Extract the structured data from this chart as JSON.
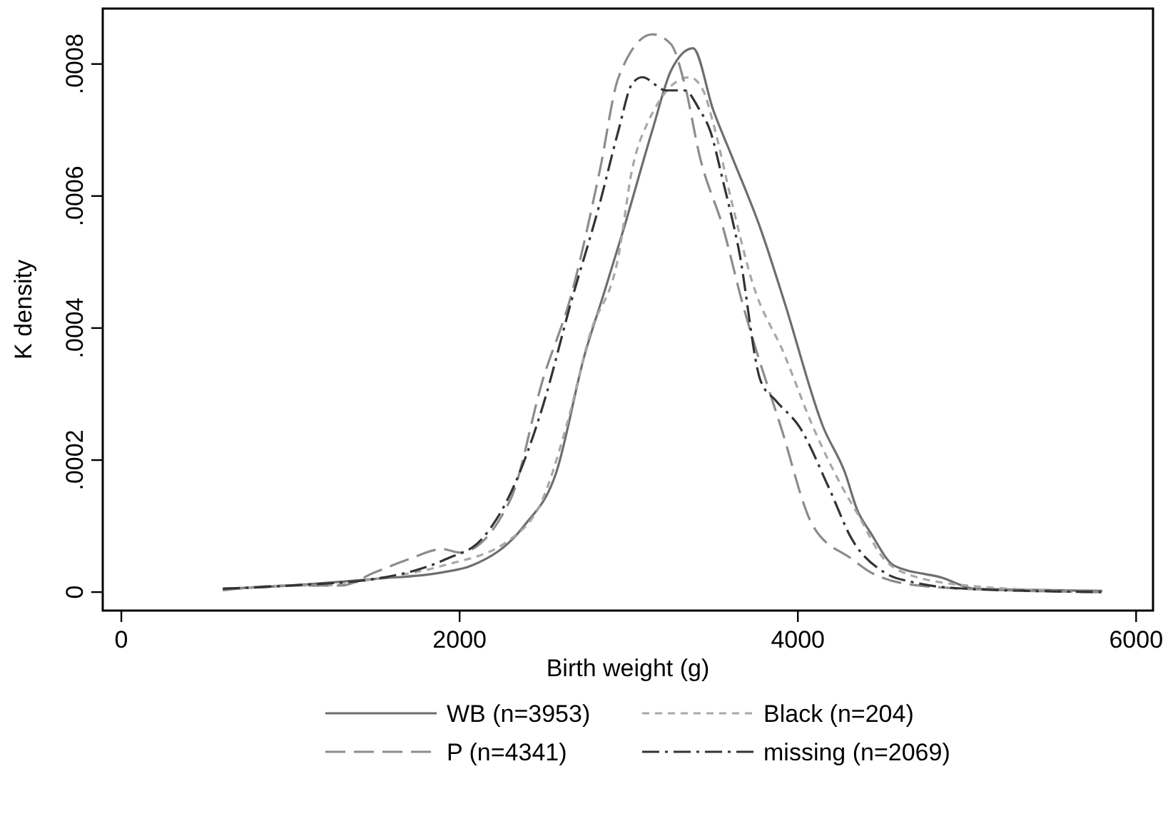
{
  "chart_data": {
    "type": "line",
    "xlabel": "Birth weight (g)",
    "ylabel": "K density",
    "xlim": [
      -110,
      6100
    ],
    "xticks": [
      0,
      2000,
      4000,
      6000
    ],
    "ylim": [
      -2.8e-05,
      0.000884
    ],
    "yticks": [
      {
        "value": 0,
        "label": "0"
      },
      {
        "value": 0.0002,
        "label": ".0002"
      },
      {
        "value": 0.0004,
        "label": ".0004"
      },
      {
        "value": 0.0006,
        "label": ".0006"
      },
      {
        "value": 0.0008,
        "label": ".0008"
      }
    ],
    "grid": false,
    "legend": "bottom",
    "marker": "none",
    "series": [
      {
        "name": "WB (n=3953)",
        "color": "#6e6e6e",
        "line_style": "solid",
        "x": [
          600,
          1000,
          1500,
          1900,
          2070,
          2380,
          2570,
          2740,
          2850,
          2970,
          3140,
          3250,
          3380,
          3500,
          3610,
          3780,
          3920,
          4150,
          4280,
          4350,
          4430,
          4570,
          4850,
          5050,
          5800
        ],
        "values": [
          5e-06,
          1e-05,
          2e-05,
          3e-05,
          4e-05,
          0.0001,
          0.00018,
          0.00036,
          0.00045,
          0.00055,
          0.0007,
          0.00079,
          0.000824,
          0.00073,
          0.00066,
          0.00055,
          0.00044,
          0.00025,
          0.00018,
          0.000125,
          9e-05,
          4e-05,
          2.2e-05,
          5e-06,
          2e-06
        ]
      },
      {
        "name": "Black (n=204)",
        "color": "#a8a8a8",
        "line_style": "dotted",
        "x": [
          600,
          1000,
          1200,
          1500,
          1900,
          2300,
          2490,
          2630,
          2770,
          2940,
          3020,
          3110,
          3360,
          3440,
          3500,
          3610,
          3730,
          3920,
          4090,
          4260,
          4350,
          4510,
          4620,
          5000,
          5800
        ],
        "values": [
          3e-06,
          1e-05,
          1e-05,
          2e-05,
          4e-05,
          8e-05,
          0.00014,
          0.00025,
          0.00039,
          0.00051,
          0.00064,
          0.00071,
          0.00078,
          0.00076,
          0.00071,
          0.00059,
          0.00047,
          0.00036,
          0.00025,
          0.00016,
          0.00012,
          5e-05,
          3e-05,
          1e-05,
          0
        ]
      },
      {
        "name": "P (n=4341)",
        "color": "#8c8c8c",
        "line_style": "dashed",
        "x": [
          600,
          1000,
          1300,
          1500,
          1700,
          1900,
          2000,
          2300,
          2490,
          2660,
          2830,
          2940,
          3140,
          3250,
          3330,
          3420,
          3560,
          3670,
          3900,
          4090,
          4320,
          4430,
          4710,
          5200,
          5800
        ],
        "values": [
          3e-06,
          1e-05,
          1e-05,
          3e-05,
          5e-05,
          6.5e-05,
          6e-05,
          0.00014,
          0.00032,
          0.00045,
          0.00064,
          0.00078,
          0.000845,
          0.00083,
          0.00077,
          0.00066,
          0.00055,
          0.00044,
          0.00025,
          0.0001,
          5e-05,
          3e-05,
          1e-05,
          3e-06,
          0
        ]
      },
      {
        "name": "missing (n=2069)",
        "color": "#333333",
        "line_style": "dashdot",
        "x": [
          600,
          1000,
          1500,
          1920,
          2130,
          2320,
          2490,
          2660,
          2830,
          2940,
          3020,
          3080,
          3220,
          3330,
          3420,
          3480,
          3560,
          3650,
          3780,
          3870,
          4010,
          4180,
          4320,
          4510,
          4680,
          5000,
          5800
        ],
        "values": [
          5e-06,
          1e-05,
          2e-05,
          5e-05,
          8e-05,
          0.00016,
          0.00028,
          0.00044,
          0.00059,
          0.0007,
          0.00077,
          0.00078,
          0.00076,
          0.00076,
          0.00073,
          0.0007,
          0.00062,
          0.00052,
          0.00032,
          0.00029,
          0.00025,
          0.00016,
          8e-05,
          3e-05,
          1.5e-05,
          5e-06,
          0
        ]
      }
    ]
  }
}
